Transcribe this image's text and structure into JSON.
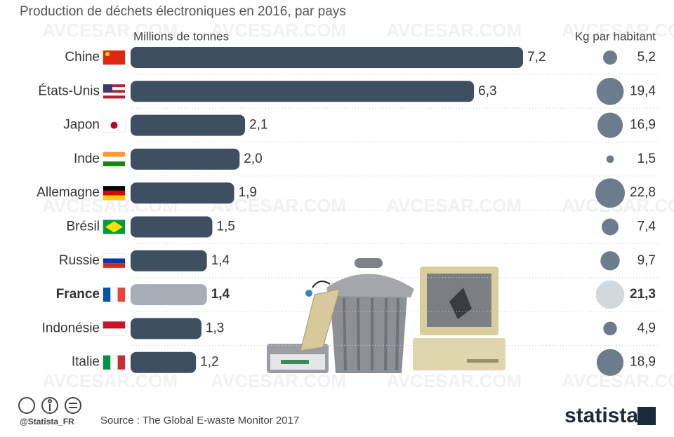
{
  "chart_data": {
    "type": "bar",
    "title": "Production de déchets électroniques en 2016, par pays",
    "categories": [
      "Chine",
      "États-Unis",
      "Japon",
      "Inde",
      "Allemagne",
      "Brésil",
      "Russie",
      "France",
      "Indonésie",
      "Italie"
    ],
    "series": [
      {
        "name": "Millions de tonnes",
        "color": "#3d4f61",
        "highlight_color": "#a7afb6",
        "values": [
          7.2,
          6.3,
          2.1,
          2.0,
          1.9,
          1.5,
          1.4,
          1.4,
          1.3,
          1.2
        ],
        "value_labels": [
          "7,2",
          "6,3",
          "2,1",
          "2,0",
          "1,9",
          "1,5",
          "1,4",
          "1,4",
          "1,3",
          "1,2"
        ]
      },
      {
        "name": "Kg par habitant",
        "color": "#6d7c8c",
        "highlight_color": "#d3d8dc",
        "values": [
          5.2,
          19.4,
          16.9,
          1.5,
          22.8,
          7.4,
          9.7,
          21.3,
          4.9,
          18.9
        ],
        "value_labels": [
          "5,2",
          "19,4",
          "16,9",
          "1,5",
          "22,8",
          "7,4",
          "9,7",
          "21,3",
          "4,9",
          "18,9"
        ]
      }
    ],
    "highlight_category": "France",
    "xlim": [
      0,
      7.2
    ],
    "source": "Source : The Global E-waste Monitor 2017",
    "credit": "@Statista_FR",
    "brand": "statista",
    "watermark": "AVCESAR.COM"
  }
}
